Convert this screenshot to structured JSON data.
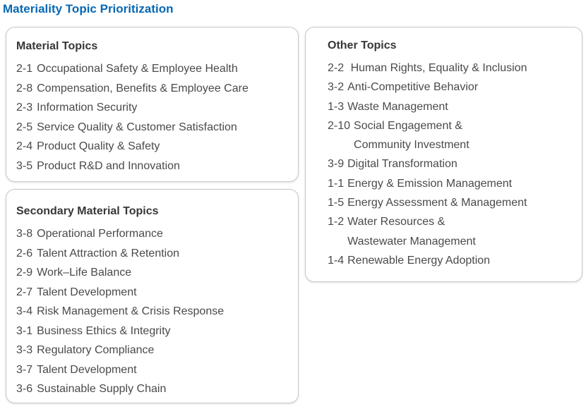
{
  "title": "Materiality Topic Prioritization",
  "colors": {
    "title_blue": "#0767b2",
    "heading_text": "#373737",
    "item_text": "#4a4a4a",
    "box_border": "#c8c8c8",
    "background": "#ffffff"
  },
  "boxes": {
    "material": {
      "heading": "Material Topics",
      "items": [
        {
          "num": "2-1",
          "text": "Occupational Safety & Employee Health"
        },
        {
          "num": "2-8",
          "text": "Compensation, Benefits & Employee Care"
        },
        {
          "num": "2-3",
          "text": "Information Security"
        },
        {
          "num": "2-5",
          "text": "Service Quality & Customer Satisfaction"
        },
        {
          "num": "2-4",
          "text": "Product Quality & Safety"
        },
        {
          "num": "3-5",
          "text": "Product R&D and Innovation"
        }
      ]
    },
    "secondary": {
      "heading": "Secondary Material Topics",
      "items": [
        {
          "num": "3-8",
          "text": "Operational Performance"
        },
        {
          "num": "2-6",
          "text": "Talent Attraction & Retention"
        },
        {
          "num": "2-9",
          "text": "Work–Life Balance"
        },
        {
          "num": "2-7",
          "text": "Talent Development"
        },
        {
          "num": "3-4",
          "text": "Risk Management & Crisis Response"
        },
        {
          "num": "3-1",
          "text": "Business Ethics & Integrity"
        },
        {
          "num": "3-3",
          "text": "Regulatory Compliance"
        },
        {
          "num": "3-7",
          "text": "Talent Development"
        },
        {
          "num": "3-6",
          "text": "Sustainable Supply Chain"
        }
      ]
    },
    "other": {
      "heading": "Other Topics",
      "items": [
        {
          "num": "2-2",
          "text": " Human Rights, Equality & Inclusion"
        },
        {
          "num": "3-2",
          "text": "Anti-Competitive Behavior"
        },
        {
          "num": "1-3",
          "text": "Waste Management"
        },
        {
          "num": "2-10",
          "text": "Social Engagement &\nCommunity Investment"
        },
        {
          "num": "3-9",
          "text": "Digital Transformation"
        },
        {
          "num": "1-1",
          "text": "Energy & Emission Management"
        },
        {
          "num": "1-5",
          "text": "Energy Assessment & Management"
        },
        {
          "num": "1-2",
          "text": "Water Resources &\nWastewater Management"
        },
        {
          "num": "1-4",
          "text": "Renewable Energy Adoption"
        }
      ]
    }
  }
}
